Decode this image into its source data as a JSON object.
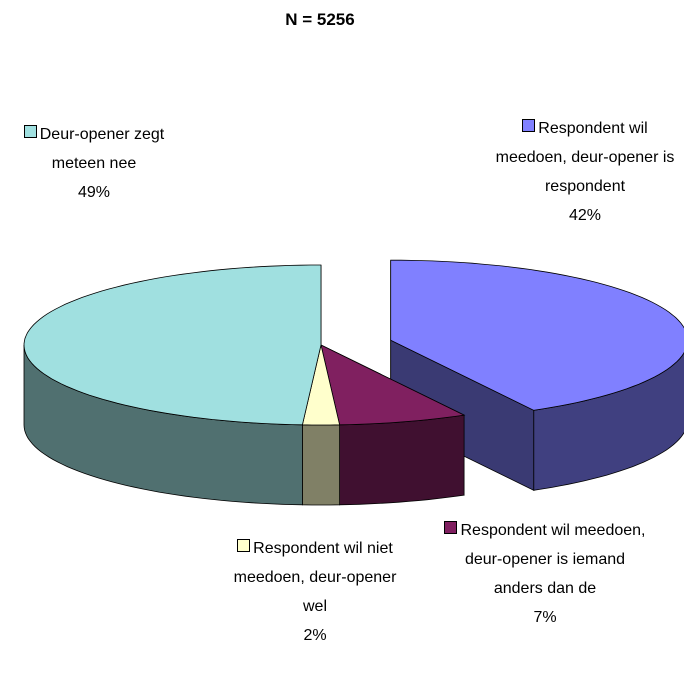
{
  "chart_data": {
    "type": "pie3d",
    "title": "N = 5256",
    "categories": [
      "Respondent wil meedoen, deur-opener is respondent",
      "Respondent wil meedoen, deur-opener is iemand anders dan de",
      "Respondent wil niet meedoen, deur-opener wel",
      "Deur-opener zegt meteen nee"
    ],
    "values": [
      42,
      7,
      2,
      49
    ],
    "value_labels": [
      "42%",
      "7%",
      "2%",
      "49%"
    ],
    "colors": [
      "#8080ff",
      "#802060",
      "#ffffcc",
      "#a0e0e0"
    ]
  }
}
